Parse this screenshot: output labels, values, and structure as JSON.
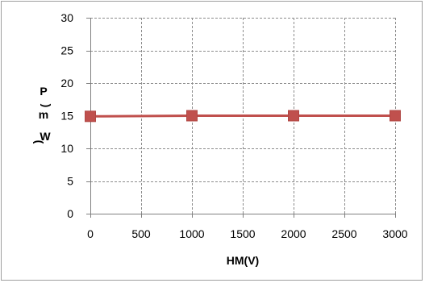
{
  "chart_data": {
    "type": "line",
    "title": "",
    "xlabel": "HM(V)",
    "ylabel_lines": [
      "P",
      "m",
      "W"
    ],
    "ylabel_paren_open": "(",
    "ylabel_paren_close": ")",
    "xlim": [
      0,
      3000
    ],
    "ylim": [
      0,
      30
    ],
    "xticks": [
      0,
      500,
      1000,
      1500,
      2000,
      2500,
      3000
    ],
    "yticks": [
      0,
      5,
      10,
      15,
      20,
      25,
      30
    ],
    "grid": true,
    "legend": "none",
    "series": [
      {
        "x": [
          0,
          1000,
          2000,
          3000
        ],
        "y": [
          14.9,
          15.0,
          15.0,
          15.0
        ],
        "color": "#c0504d",
        "marker": "square"
      }
    ]
  }
}
